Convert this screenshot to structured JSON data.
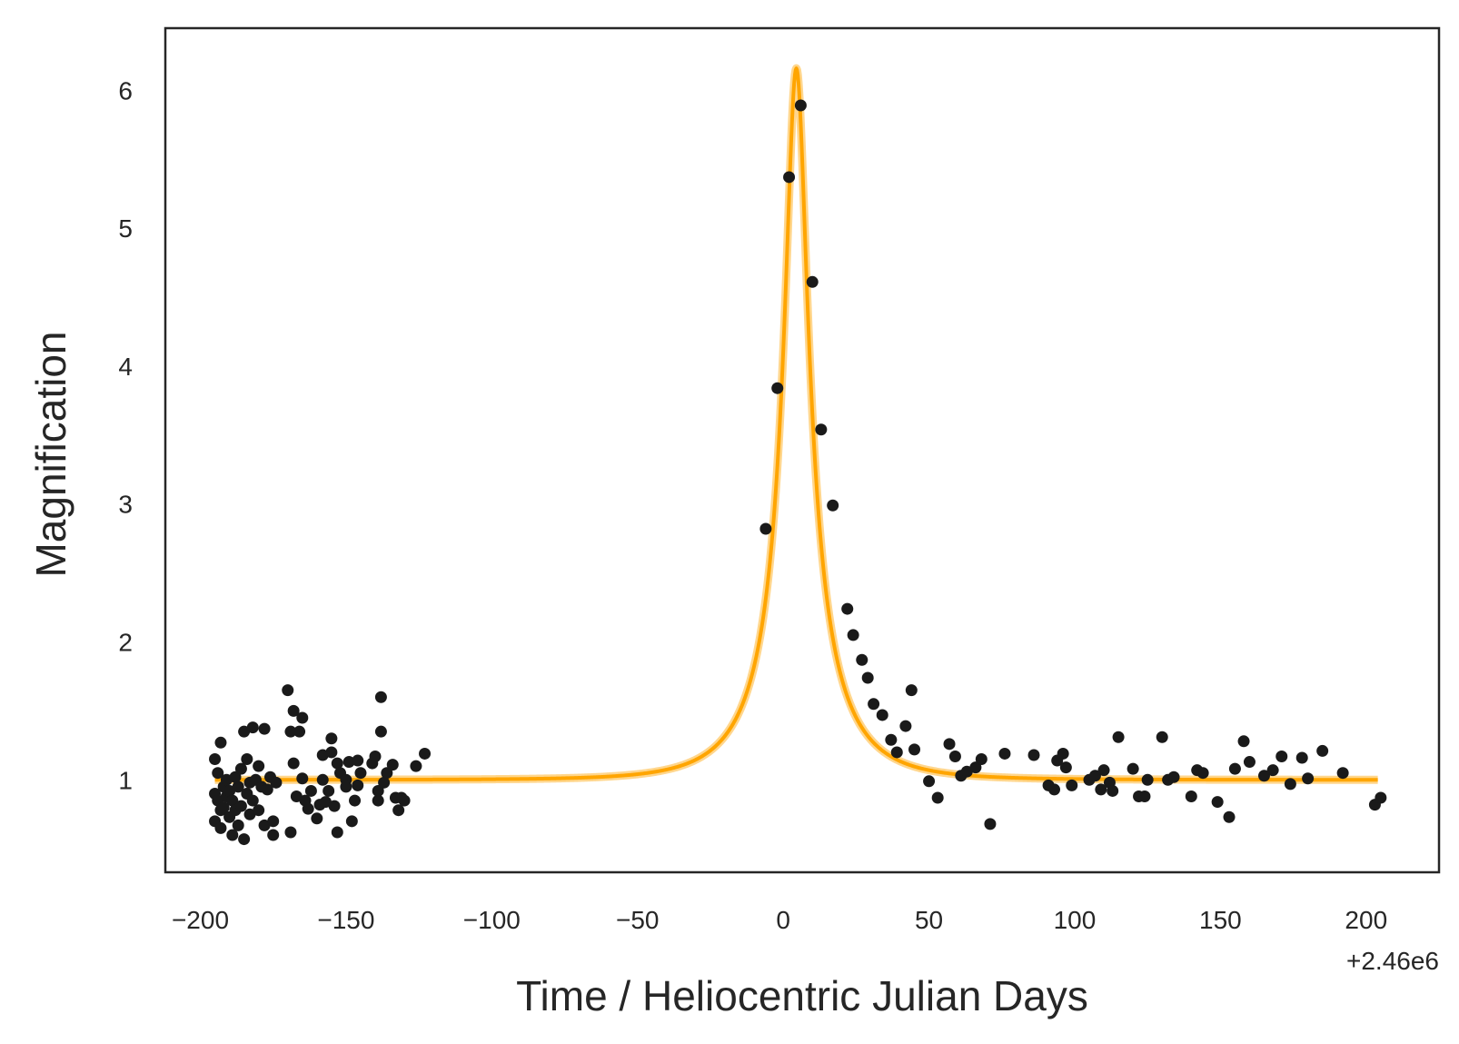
{
  "chart_data": {
    "type": "scatter",
    "title": "",
    "xlabel": "Time / Heliocentric Julian Days",
    "ylabel": "Magnification",
    "x_offset_label": "+2.46e6",
    "xlim": [
      -212,
      225
    ],
    "ylim": [
      0.33,
      6.45
    ],
    "xticks": [
      -200,
      -150,
      -100,
      -50,
      0,
      50,
      100,
      150,
      200
    ],
    "xtick_labels": [
      "−200",
      "−150",
      "−100",
      "−50",
      "0",
      "50",
      "100",
      "150",
      "200"
    ],
    "yticks": [
      1,
      2,
      3,
      4,
      5,
      6
    ],
    "ytick_labels": [
      "1",
      "2",
      "3",
      "4",
      "5",
      "6"
    ],
    "grid": false,
    "colors": {
      "model": "#ffa500",
      "points": "#1a1a1a",
      "frame": "#262626"
    },
    "model": {
      "kind": "point-lens microlensing fit",
      "t0": 4.5,
      "tE": 24,
      "u0": 0.164,
      "x_range": [
        -195,
        204
      ]
    },
    "series": [
      {
        "kind": "scatter",
        "points": [
          [
            -195,
            0.7
          ],
          [
            -195,
            0.9
          ],
          [
            -195,
            1.15
          ],
          [
            -194,
            0.85
          ],
          [
            -194,
            1.05
          ],
          [
            -193,
            0.65
          ],
          [
            -193,
            0.78
          ],
          [
            -193,
            1.27
          ],
          [
            -192,
            0.95
          ],
          [
            -192,
            0.8
          ],
          [
            -191,
            0.88
          ],
          [
            -191,
            1.0
          ],
          [
            -190,
            0.73
          ],
          [
            -190,
            0.92
          ],
          [
            -189,
            0.6
          ],
          [
            -189,
            0.85
          ],
          [
            -188,
            1.02
          ],
          [
            -188,
            0.78
          ],
          [
            -187,
            0.67
          ],
          [
            -187,
            0.95
          ],
          [
            -186,
            1.08
          ],
          [
            -186,
            0.81
          ],
          [
            -185,
            0.57
          ],
          [
            -185,
            1.35
          ],
          [
            -184,
            0.9
          ],
          [
            -184,
            1.15
          ],
          [
            -183,
            0.75
          ],
          [
            -183,
            0.98
          ],
          [
            -182,
            1.38
          ],
          [
            -182,
            0.85
          ],
          [
            -181,
            1.0
          ],
          [
            -180,
            1.1
          ],
          [
            -180,
            0.78
          ],
          [
            -179,
            0.95
          ],
          [
            -178,
            0.67
          ],
          [
            -178,
            1.37
          ],
          [
            -177,
            0.93
          ],
          [
            -176,
            1.02
          ],
          [
            -175,
            0.6
          ],
          [
            -175,
            0.7
          ],
          [
            -174,
            0.98
          ],
          [
            -170,
            1.65
          ],
          [
            -169,
            0.62
          ],
          [
            -169,
            1.35
          ],
          [
            -168,
            1.5
          ],
          [
            -168,
            1.12
          ],
          [
            -167,
            0.88
          ],
          [
            -166,
            1.35
          ],
          [
            -165,
            1.01
          ],
          [
            -165,
            1.45
          ],
          [
            -164,
            0.85
          ],
          [
            -163,
            0.79
          ],
          [
            -162,
            0.92
          ],
          [
            -160,
            0.72
          ],
          [
            -159,
            0.82
          ],
          [
            -158,
            1.0
          ],
          [
            -158,
            1.18
          ],
          [
            -157,
            0.84
          ],
          [
            -156,
            0.92
          ],
          [
            -155,
            1.3
          ],
          [
            -155,
            1.2
          ],
          [
            -154,
            0.81
          ],
          [
            -153,
            0.62
          ],
          [
            -153,
            1.12
          ],
          [
            -152,
            1.05
          ],
          [
            -150,
            1.0
          ],
          [
            -150,
            0.95
          ],
          [
            -149,
            1.13
          ],
          [
            -148,
            0.7
          ],
          [
            -147,
            0.85
          ],
          [
            -146,
            0.96
          ],
          [
            -146,
            1.14
          ],
          [
            -145,
            1.05
          ],
          [
            -141,
            1.12
          ],
          [
            -140,
            1.17
          ],
          [
            -139,
            0.85
          ],
          [
            -139,
            0.92
          ],
          [
            -138,
            1.6
          ],
          [
            -138,
            1.35
          ],
          [
            -137,
            0.98
          ],
          [
            -136,
            1.05
          ],
          [
            -134,
            1.11
          ],
          [
            -133,
            0.87
          ],
          [
            -132,
            0.78
          ],
          [
            -131,
            0.87
          ],
          [
            -130,
            0.85
          ],
          [
            -126,
            1.1
          ],
          [
            -123,
            1.19
          ],
          [
            -6,
            2.82
          ],
          [
            -2,
            3.84
          ],
          [
            2,
            5.37
          ],
          [
            6,
            5.89
          ],
          [
            10,
            4.61
          ],
          [
            13,
            3.54
          ],
          [
            17,
            2.99
          ],
          [
            22,
            2.24
          ],
          [
            24,
            2.05
          ],
          [
            27,
            1.87
          ],
          [
            29,
            1.74
          ],
          [
            31,
            1.55
          ],
          [
            34,
            1.47
          ],
          [
            37,
            1.29
          ],
          [
            39,
            1.2
          ],
          [
            42,
            1.39
          ],
          [
            44,
            1.65
          ],
          [
            45,
            1.22
          ],
          [
            50,
            0.99
          ],
          [
            53,
            0.87
          ],
          [
            57,
            1.26
          ],
          [
            59,
            1.17
          ],
          [
            61,
            1.03
          ],
          [
            63,
            1.06
          ],
          [
            66,
            1.09
          ],
          [
            68,
            1.15
          ],
          [
            71,
            0.68
          ],
          [
            76,
            1.19
          ],
          [
            86,
            1.18
          ],
          [
            91,
            0.96
          ],
          [
            93,
            0.93
          ],
          [
            94,
            1.14
          ],
          [
            96,
            1.19
          ],
          [
            97,
            1.09
          ],
          [
            99,
            0.96
          ],
          [
            105,
            1.0
          ],
          [
            107,
            1.03
          ],
          [
            109,
            0.93
          ],
          [
            110,
            1.07
          ],
          [
            112,
            0.98
          ],
          [
            113,
            0.92
          ],
          [
            115,
            1.31
          ],
          [
            120,
            1.08
          ],
          [
            122,
            0.88
          ],
          [
            124,
            0.88
          ],
          [
            125,
            1.0
          ],
          [
            130,
            1.31
          ],
          [
            132,
            1.0
          ],
          [
            134,
            1.02
          ],
          [
            140,
            0.88
          ],
          [
            142,
            1.07
          ],
          [
            144,
            1.05
          ],
          [
            149,
            0.84
          ],
          [
            153,
            0.73
          ],
          [
            155,
            1.08
          ],
          [
            158,
            1.28
          ],
          [
            160,
            1.13
          ],
          [
            165,
            1.03
          ],
          [
            168,
            1.07
          ],
          [
            171,
            1.17
          ],
          [
            174,
            0.97
          ],
          [
            178,
            1.16
          ],
          [
            180,
            1.01
          ],
          [
            185,
            1.21
          ],
          [
            192,
            1.05
          ],
          [
            203,
            0.82
          ],
          [
            205,
            0.87
          ]
        ]
      }
    ]
  }
}
